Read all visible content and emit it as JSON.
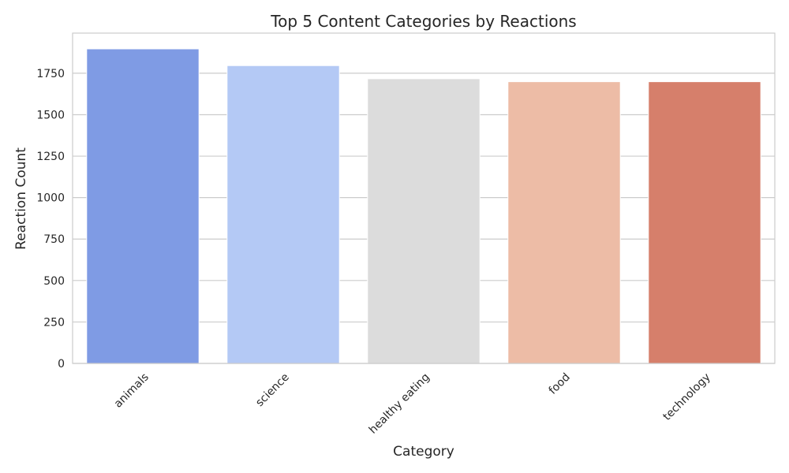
{
  "chart_data": {
    "type": "bar",
    "title": "Top 5 Content Categories by Reactions",
    "xlabel": "Category",
    "ylabel": "Reaction Count",
    "categories": [
      "animals",
      "science",
      "healthy eating",
      "food",
      "technology"
    ],
    "values": [
      1897,
      1796,
      1717,
      1699,
      1699
    ],
    "colors": [
      "#7f9be4",
      "#b4c9f5",
      "#dcdcdc",
      "#edbca6",
      "#d67f6b"
    ],
    "yticks": [
      "0",
      "250",
      "500",
      "750",
      "1000",
      "1250",
      "1500",
      "1750"
    ],
    "ylim": [
      0,
      1992
    ],
    "grid": "horizontal",
    "legend": "none"
  }
}
